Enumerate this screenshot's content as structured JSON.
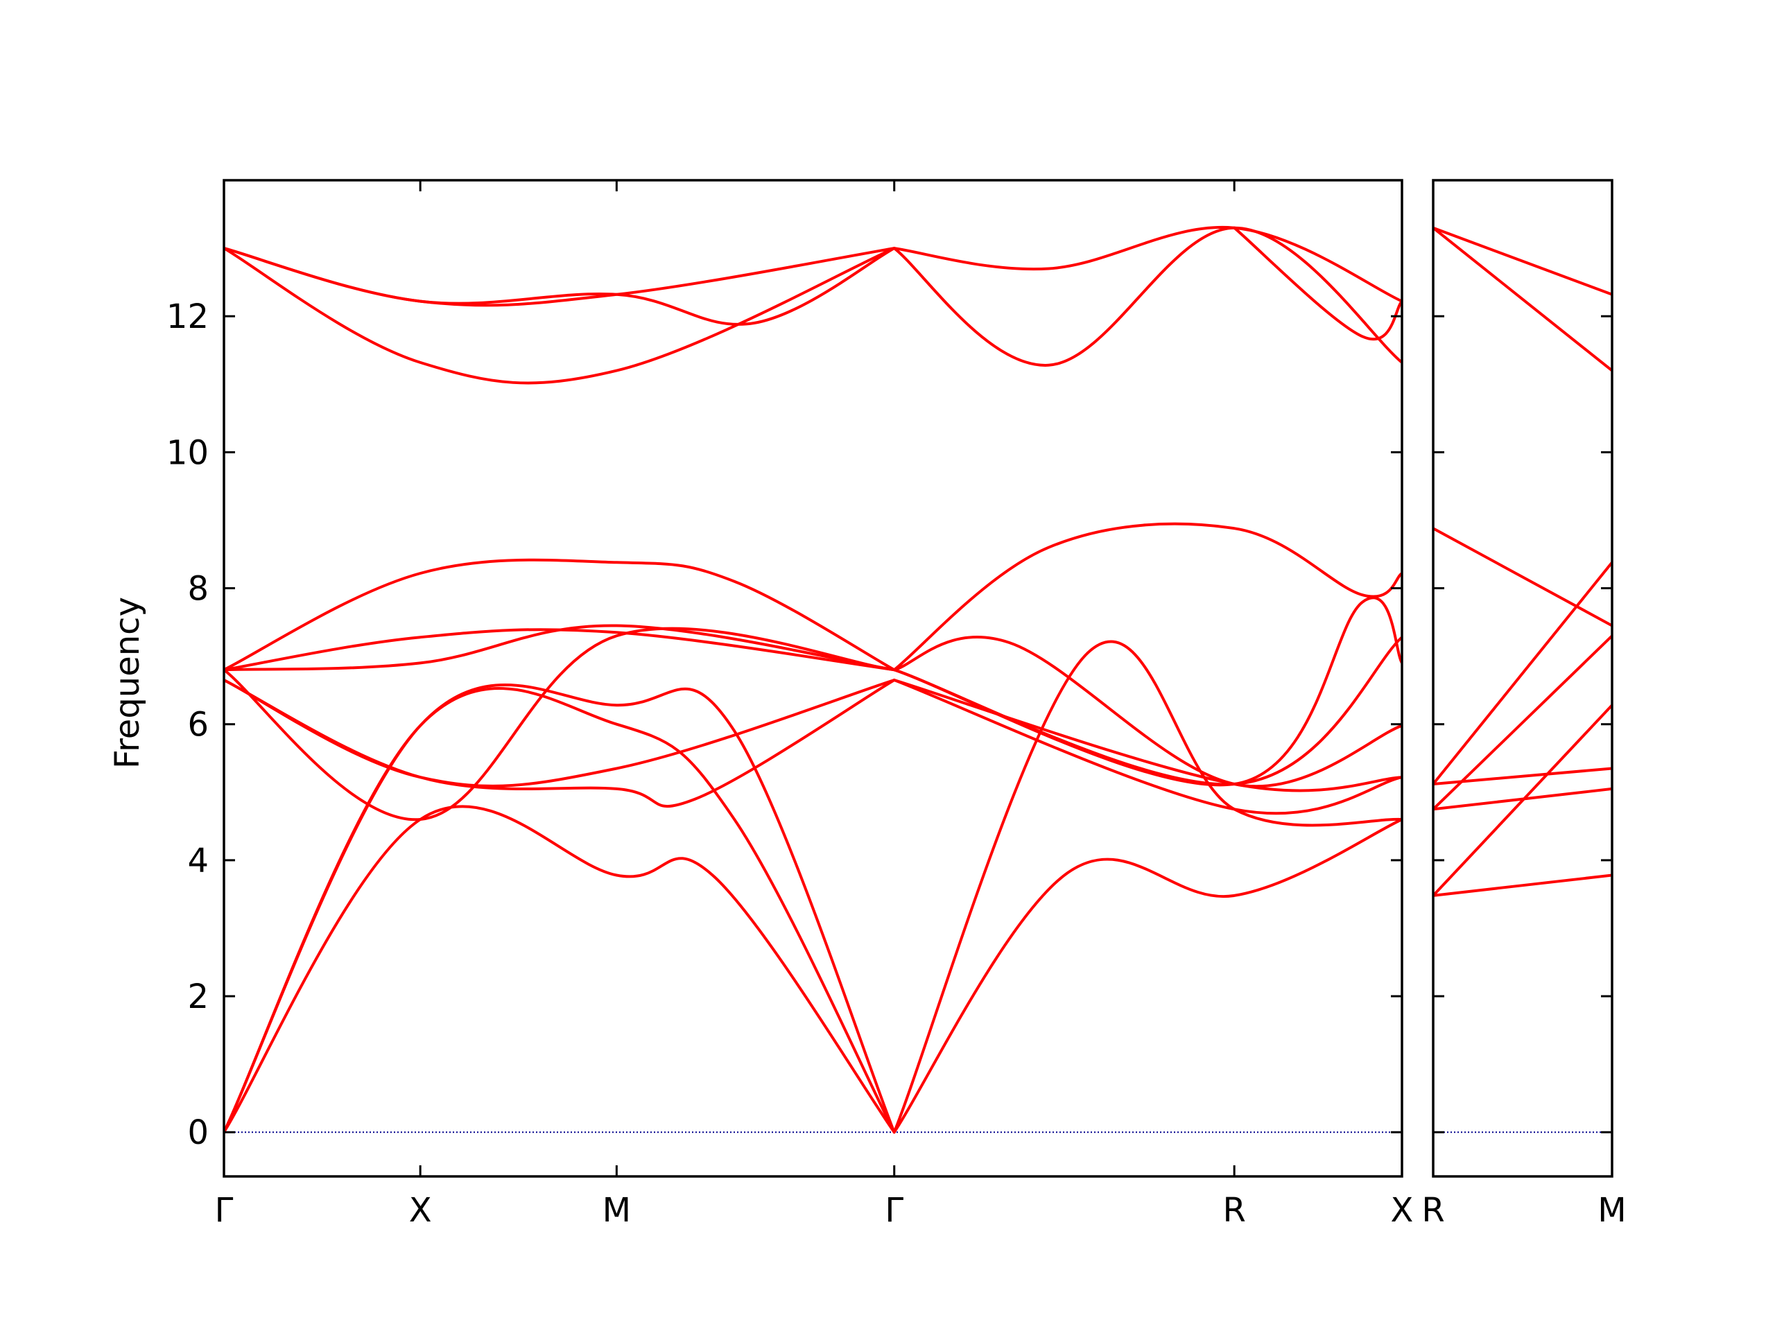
{
  "chart_data": {
    "type": "line",
    "ylabel": "Frequency",
    "xlabel": "",
    "ylim": [
      -0.65,
      14.0
    ],
    "yticks": [
      "0",
      "2",
      "4",
      "6",
      "8",
      "10",
      "12"
    ],
    "yticks_values": [
      0,
      2,
      4,
      6,
      8,
      10,
      12
    ],
    "line_color": "#ff0000",
    "zero_line_color": "#00008b",
    "panels": [
      {
        "xticks": [
          "Γ",
          "X",
          "M",
          "Γ",
          "R",
          "X"
        ],
        "xticks_positions": [
          0,
          0.5,
          1.0,
          1.707,
          2.573,
          3.0
        ],
        "xlim": [
          0,
          3.0
        ],
        "bands": [
          {
            "x": [
              0,
              0.5,
              1.0,
              1.25,
              1.707
            ],
            "y": [
              0,
              4.6,
              3.78,
              3.75,
              0
            ]
          },
          {
            "x": [
              0,
              0.5,
              1.0,
              1.3,
              1.707
            ],
            "y": [
              0,
              5.98,
              6.0,
              4.6,
              0
            ]
          },
          {
            "x": [
              0,
              0.5,
              1.0,
              1.3,
              1.707
            ],
            "y": [
              0,
              5.98,
              6.28,
              5.9,
              0
            ]
          },
          {
            "x": [
              0,
              0.5,
              1.0,
              1.2,
              1.707
            ],
            "y": [
              6.65,
              5.22,
              5.05,
              4.9,
              6.65
            ]
          },
          {
            "x": [
              0,
              0.5,
              1.0,
              1.707
            ],
            "y": [
              6.65,
              5.22,
              5.35,
              6.65
            ]
          },
          {
            "x": [
              0,
              0.5,
              1.0,
              1.707
            ],
            "y": [
              6.8,
              4.6,
              7.3,
              6.8
            ]
          },
          {
            "x": [
              0,
              0.5,
              1.0,
              1.707
            ],
            "y": [
              6.8,
              6.9,
              7.45,
              6.8
            ]
          },
          {
            "x": [
              0,
              0.5,
              1.0,
              1.707
            ],
            "y": [
              6.8,
              7.28,
              7.35,
              6.8
            ]
          },
          {
            "x": [
              0,
              0.5,
              1.0,
              1.3,
              1.707
            ],
            "y": [
              6.8,
              8.22,
              8.38,
              8.1,
              6.8
            ]
          },
          {
            "x": [
              0,
              0.5,
              1.0,
              1.707
            ],
            "y": [
              13.0,
              12.22,
              12.32,
              13.0
            ]
          },
          {
            "x": [
              0,
              0.5,
              1.0,
              1.707
            ],
            "y": [
              13.0,
              11.32,
              11.2,
              13.0
            ]
          },
          {
            "x": [
              0,
              0.5,
              1.0,
              1.35,
              1.707
            ],
            "y": [
              13.0,
              12.22,
              12.32,
              11.9,
              13.0
            ]
          },
          {
            "x": [
              1.707,
              2.15,
              2.573,
              3.0
            ],
            "y": [
              0,
              3.82,
              3.48,
              4.6
            ]
          },
          {
            "x": [
              1.707,
              2.2,
              2.573,
              3.0
            ],
            "y": [
              0,
              7.05,
              4.75,
              4.6
            ]
          },
          {
            "x": [
              1.707,
              2.573,
              3.0
            ],
            "y": [
              6.65,
              4.75,
              5.22
            ]
          },
          {
            "x": [
              1.707,
              2.573,
              3.0
            ],
            "y": [
              6.65,
              5.12,
              5.22
            ]
          },
          {
            "x": [
              1.707,
              2.0,
              2.573,
              3.0
            ],
            "y": [
              6.8,
              7.2,
              5.12,
              5.98
            ]
          },
          {
            "x": [
              1.707,
              2.573,
              2.9,
              3.0
            ],
            "y": [
              6.8,
              5.12,
              7.8,
              6.9
            ]
          },
          {
            "x": [
              1.707,
              2.573,
              3.0
            ],
            "y": [
              6.8,
              5.12,
              7.28
            ]
          },
          {
            "x": [
              1.707,
              2.1,
              2.573,
              2.9,
              3.0
            ],
            "y": [
              6.8,
              8.6,
              8.88,
              7.9,
              8.22
            ]
          },
          {
            "x": [
              1.707,
              2.1,
              2.573,
              3.0
            ],
            "y": [
              13.0,
              11.28,
              13.3,
              11.32
            ]
          },
          {
            "x": [
              1.707,
              2.1,
              2.573,
              3.0
            ],
            "y": [
              13.0,
              12.7,
              13.3,
              12.22
            ]
          },
          {
            "x": [
              2.573,
              2.9,
              3.0
            ],
            "y": [
              13.3,
              11.7,
              12.22
            ]
          }
        ]
      },
      {
        "xticks": [
          "R",
          "M"
        ],
        "xticks_positions": [
          0,
          0.5
        ],
        "xlim": [
          0,
          0.5
        ],
        "bands": [
          {
            "x": [
              0,
              0.5
            ],
            "y": [
              3.48,
              3.78
            ]
          },
          {
            "x": [
              0,
              0.5
            ],
            "y": [
              3.48,
              6.28
            ]
          },
          {
            "x": [
              0,
              0.5
            ],
            "y": [
              4.75,
              5.05
            ]
          },
          {
            "x": [
              0,
              0.5
            ],
            "y": [
              4.75,
              7.3
            ]
          },
          {
            "x": [
              0,
              0.5
            ],
            "y": [
              5.12,
              5.35
            ]
          },
          {
            "x": [
              0,
              0.5
            ],
            "y": [
              5.12,
              8.38
            ]
          },
          {
            "x": [
              0,
              0.5
            ],
            "y": [
              8.88,
              7.45
            ]
          },
          {
            "x": [
              0,
              0.5
            ],
            "y": [
              13.3,
              12.32
            ]
          },
          {
            "x": [
              0,
              0.5
            ],
            "y": [
              13.3,
              11.2
            ]
          }
        ]
      }
    ]
  }
}
